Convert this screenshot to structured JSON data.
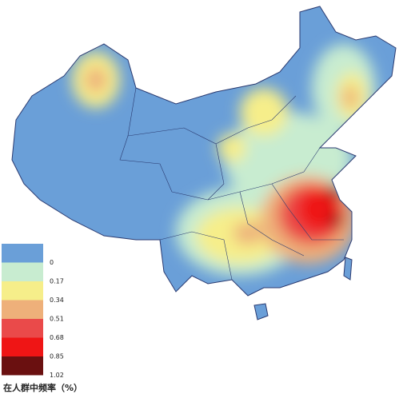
{
  "legend": {
    "title": "在人群中频率（%）",
    "items": [
      {
        "color": "#6a9fd8",
        "label": "0"
      },
      {
        "color": "#c8ecd0",
        "label": "0.17"
      },
      {
        "color": "#f6ee8a",
        "label": "0.34"
      },
      {
        "color": "#eeb07a",
        "label": "0.51"
      },
      {
        "color": "#ea4a4a",
        "label": "0.68"
      },
      {
        "color": "#ef1515",
        "label": "0.85"
      },
      {
        "color": "#6a1010",
        "label": "1.02"
      }
    ]
  }
}
